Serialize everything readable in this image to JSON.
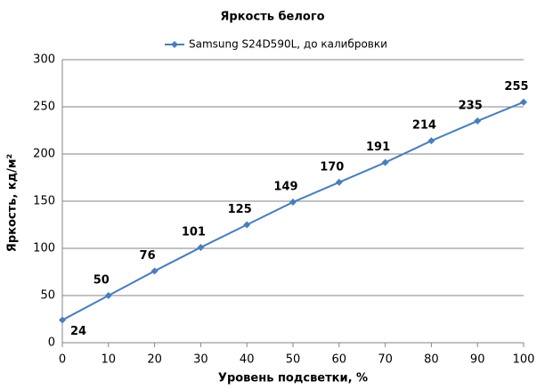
{
  "chart_data": {
    "type": "line",
    "title": "Яркость белого",
    "x_label": "Уровень подсветки, %",
    "y_label": "Яркость, кд/м²",
    "x": [
      0,
      10,
      20,
      30,
      40,
      50,
      60,
      70,
      80,
      90,
      100
    ],
    "series": [
      {
        "name": "Samsung S24D590L,  до калибровки",
        "color": "#4a7ebb",
        "values": [
          24,
          50,
          76,
          101,
          125,
          149,
          170,
          191,
          214,
          235,
          255
        ]
      }
    ],
    "xlim": [
      0,
      100
    ],
    "xticks": [
      0,
      10,
      20,
      30,
      40,
      50,
      60,
      70,
      80,
      90,
      100
    ],
    "ylim": [
      0,
      300
    ],
    "yticks": [
      0,
      50,
      100,
      150,
      200,
      250,
      300
    ],
    "grid": true,
    "legend": "top"
  }
}
